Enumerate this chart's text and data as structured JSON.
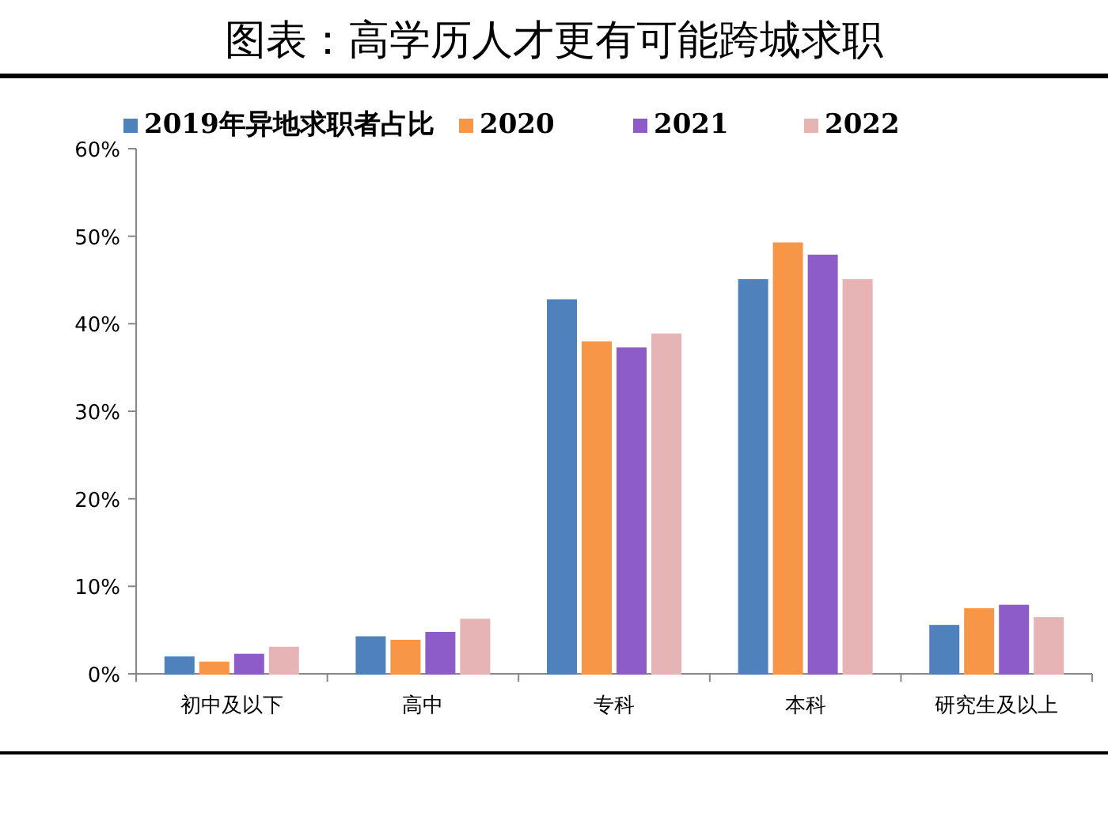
{
  "chart_data": {
    "type": "bar",
    "title": "图表：高学历人才更有可能跨城求职",
    "categories": [
      "初中及以下",
      "高中",
      "专科",
      "本科",
      "研究生及以上"
    ],
    "series": [
      {
        "name": "2019年异地求职者占比",
        "color": "#4f81bd",
        "values": [
          1.9,
          4.2,
          42.7,
          45.0,
          5.5
        ]
      },
      {
        "name": "2020",
        "color": "#f79646",
        "values": [
          1.3,
          3.8,
          37.9,
          49.2,
          7.4
        ]
      },
      {
        "name": "2021",
        "color": "#8e5cc8",
        "values": [
          2.2,
          4.7,
          37.2,
          47.8,
          7.8
        ]
      },
      {
        "name": "2022",
        "color": "#e6b4b4",
        "values": [
          3.0,
          6.2,
          38.8,
          45.0,
          6.4
        ]
      }
    ],
    "ylim": [
      0,
      60
    ],
    "yticks": [
      {
        "value": 0,
        "label": "0%"
      },
      {
        "value": 10,
        "label": "10%"
      },
      {
        "value": 20,
        "label": "20%"
      },
      {
        "value": 30,
        "label": "30%"
      },
      {
        "value": 40,
        "label": "40%"
      },
      {
        "value": 50,
        "label": "50%"
      },
      {
        "value": 60,
        "label": "60%"
      }
    ],
    "legend": "top",
    "grid": false
  }
}
